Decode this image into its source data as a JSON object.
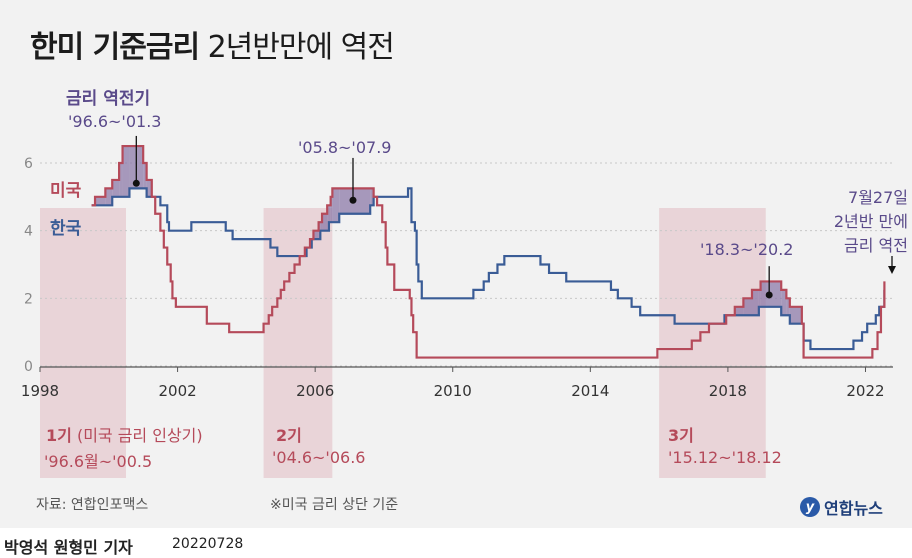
{
  "header": {
    "title_bold": "한미 기준금리",
    "title_rest": " 2년반만에 역전"
  },
  "annotations": {
    "inversion1_title": "금리 역전기",
    "inversion1_period": "'96.6~'01.3",
    "inversion2_period": "'05.8~'07.9",
    "inversion3_period": "'18.3~'20.2",
    "latest_line1": "7월27일",
    "latest_line2": "2년반 만에",
    "latest_line3": "금리 역전",
    "series_us": "미국",
    "series_kr": "한국"
  },
  "phases": [
    {
      "label": "1기",
      "note": " (미국 금리 인상기)",
      "period": "'96.6월~'00.5"
    },
    {
      "label": "2기",
      "note": "",
      "period": "'04.6~'06.6"
    },
    {
      "label": "3기",
      "note": "",
      "period": "'15.12~'18.12"
    }
  ],
  "footer": {
    "source": "자료: 연합인포맥스",
    "footnote": "※미국 금리 상단 기준",
    "logo": "연합뉴스",
    "byline": "박영석 원형민 기자",
    "date": "20220728"
  },
  "colors": {
    "us": "#b54a5a",
    "kr": "#3a5c96",
    "inversion_fill": "#8c7aa8",
    "phase_fill": "#e8cfd4",
    "accent_purple": "#5a4a8a"
  },
  "chart_data": {
    "type": "line",
    "title": "한미 기준금리 2년반만에 역전",
    "xlabel": "",
    "ylabel": "",
    "xlim": [
      1998,
      2022.8
    ],
    "ylim": [
      0,
      6.5
    ],
    "xticks": [
      1998,
      2002,
      2006,
      2010,
      2014,
      2018,
      2022
    ],
    "yticks": [
      0,
      2,
      4,
      6
    ],
    "grid": false,
    "legend": "inline labels at left",
    "series": [
      {
        "name": "미국",
        "points": [
          [
            1999.5,
            4.75
          ],
          [
            1999.6,
            5.0
          ],
          [
            1999.9,
            5.25
          ],
          [
            2000.1,
            5.5
          ],
          [
            2000.3,
            6.0
          ],
          [
            2000.4,
            6.5
          ],
          [
            2001.0,
            6.0
          ],
          [
            2001.1,
            5.5
          ],
          [
            2001.25,
            5.0
          ],
          [
            2001.35,
            4.5
          ],
          [
            2001.5,
            4.0
          ],
          [
            2001.6,
            3.5
          ],
          [
            2001.7,
            3.0
          ],
          [
            2001.8,
            2.5
          ],
          [
            2001.85,
            2.0
          ],
          [
            2001.95,
            1.75
          ],
          [
            2002.85,
            1.25
          ],
          [
            2003.5,
            1.0
          ],
          [
            2004.5,
            1.25
          ],
          [
            2004.65,
            1.5
          ],
          [
            2004.75,
            1.75
          ],
          [
            2004.9,
            2.0
          ],
          [
            2005.0,
            2.25
          ],
          [
            2005.1,
            2.5
          ],
          [
            2005.25,
            2.75
          ],
          [
            2005.4,
            3.0
          ],
          [
            2005.55,
            3.25
          ],
          [
            2005.7,
            3.5
          ],
          [
            2005.85,
            3.75
          ],
          [
            2005.95,
            4.0
          ],
          [
            2006.1,
            4.25
          ],
          [
            2006.2,
            4.5
          ],
          [
            2006.35,
            4.75
          ],
          [
            2006.45,
            5.0
          ],
          [
            2006.5,
            5.25
          ],
          [
            2007.7,
            5.0
          ],
          [
            2007.8,
            4.75
          ],
          [
            2007.95,
            4.25
          ],
          [
            2008.05,
            3.5
          ],
          [
            2008.1,
            3.0
          ],
          [
            2008.3,
            2.25
          ],
          [
            2008.75,
            2.0
          ],
          [
            2008.8,
            1.5
          ],
          [
            2008.85,
            1.0
          ],
          [
            2008.95,
            0.25
          ],
          [
            2015.95,
            0.5
          ],
          [
            2016.95,
            0.75
          ],
          [
            2017.2,
            1.0
          ],
          [
            2017.45,
            1.25
          ],
          [
            2017.95,
            1.5
          ],
          [
            2018.2,
            1.75
          ],
          [
            2018.45,
            2.0
          ],
          [
            2018.7,
            2.25
          ],
          [
            2018.95,
            2.5
          ],
          [
            2019.55,
            2.25
          ],
          [
            2019.7,
            2.0
          ],
          [
            2019.8,
            1.75
          ],
          [
            2020.15,
            1.25
          ],
          [
            2020.2,
            0.25
          ],
          [
            2022.2,
            0.5
          ],
          [
            2022.35,
            1.0
          ],
          [
            2022.45,
            1.75
          ],
          [
            2022.55,
            2.5
          ]
        ]
      },
      {
        "name": "한국",
        "points": [
          [
            1999.5,
            4.75
          ],
          [
            2000.1,
            5.0
          ],
          [
            2000.6,
            5.25
          ],
          [
            2001.1,
            5.0
          ],
          [
            2001.5,
            4.75
          ],
          [
            2001.7,
            4.25
          ],
          [
            2001.75,
            4.0
          ],
          [
            2002.4,
            4.25
          ],
          [
            2003.4,
            4.0
          ],
          [
            2003.6,
            3.75
          ],
          [
            2004.7,
            3.5
          ],
          [
            2004.9,
            3.25
          ],
          [
            2005.75,
            3.5
          ],
          [
            2005.9,
            3.75
          ],
          [
            2006.15,
            4.0
          ],
          [
            2006.4,
            4.25
          ],
          [
            2006.7,
            4.5
          ],
          [
            2007.6,
            4.75
          ],
          [
            2007.7,
            5.0
          ],
          [
            2008.7,
            5.25
          ],
          [
            2008.8,
            4.25
          ],
          [
            2008.9,
            4.0
          ],
          [
            2008.95,
            3.0
          ],
          [
            2009.0,
            2.5
          ],
          [
            2009.1,
            2.0
          ],
          [
            2010.6,
            2.25
          ],
          [
            2010.9,
            2.5
          ],
          [
            2011.05,
            2.75
          ],
          [
            2011.3,
            3.0
          ],
          [
            2011.5,
            3.25
          ],
          [
            2012.55,
            3.0
          ],
          [
            2012.8,
            2.75
          ],
          [
            2013.3,
            2.5
          ],
          [
            2014.6,
            2.25
          ],
          [
            2014.8,
            2.0
          ],
          [
            2015.2,
            1.75
          ],
          [
            2015.45,
            1.5
          ],
          [
            2016.45,
            1.25
          ],
          [
            2017.9,
            1.5
          ],
          [
            2018.9,
            1.75
          ],
          [
            2019.55,
            1.5
          ],
          [
            2019.8,
            1.25
          ],
          [
            2020.2,
            0.75
          ],
          [
            2020.4,
            0.5
          ],
          [
            2021.65,
            0.75
          ],
          [
            2021.9,
            1.0
          ],
          [
            2022.05,
            1.25
          ],
          [
            2022.3,
            1.5
          ],
          [
            2022.4,
            1.75
          ],
          [
            2022.55,
            2.25
          ]
        ]
      }
    ],
    "highlight_periods": [
      {
        "name": "1기",
        "from": 1998,
        "to": 2000.5
      },
      {
        "name": "2기",
        "from": 2004.5,
        "to": 2006.5
      },
      {
        "name": "3기",
        "from": 2016.0,
        "to": 2019.1
      }
    ]
  }
}
